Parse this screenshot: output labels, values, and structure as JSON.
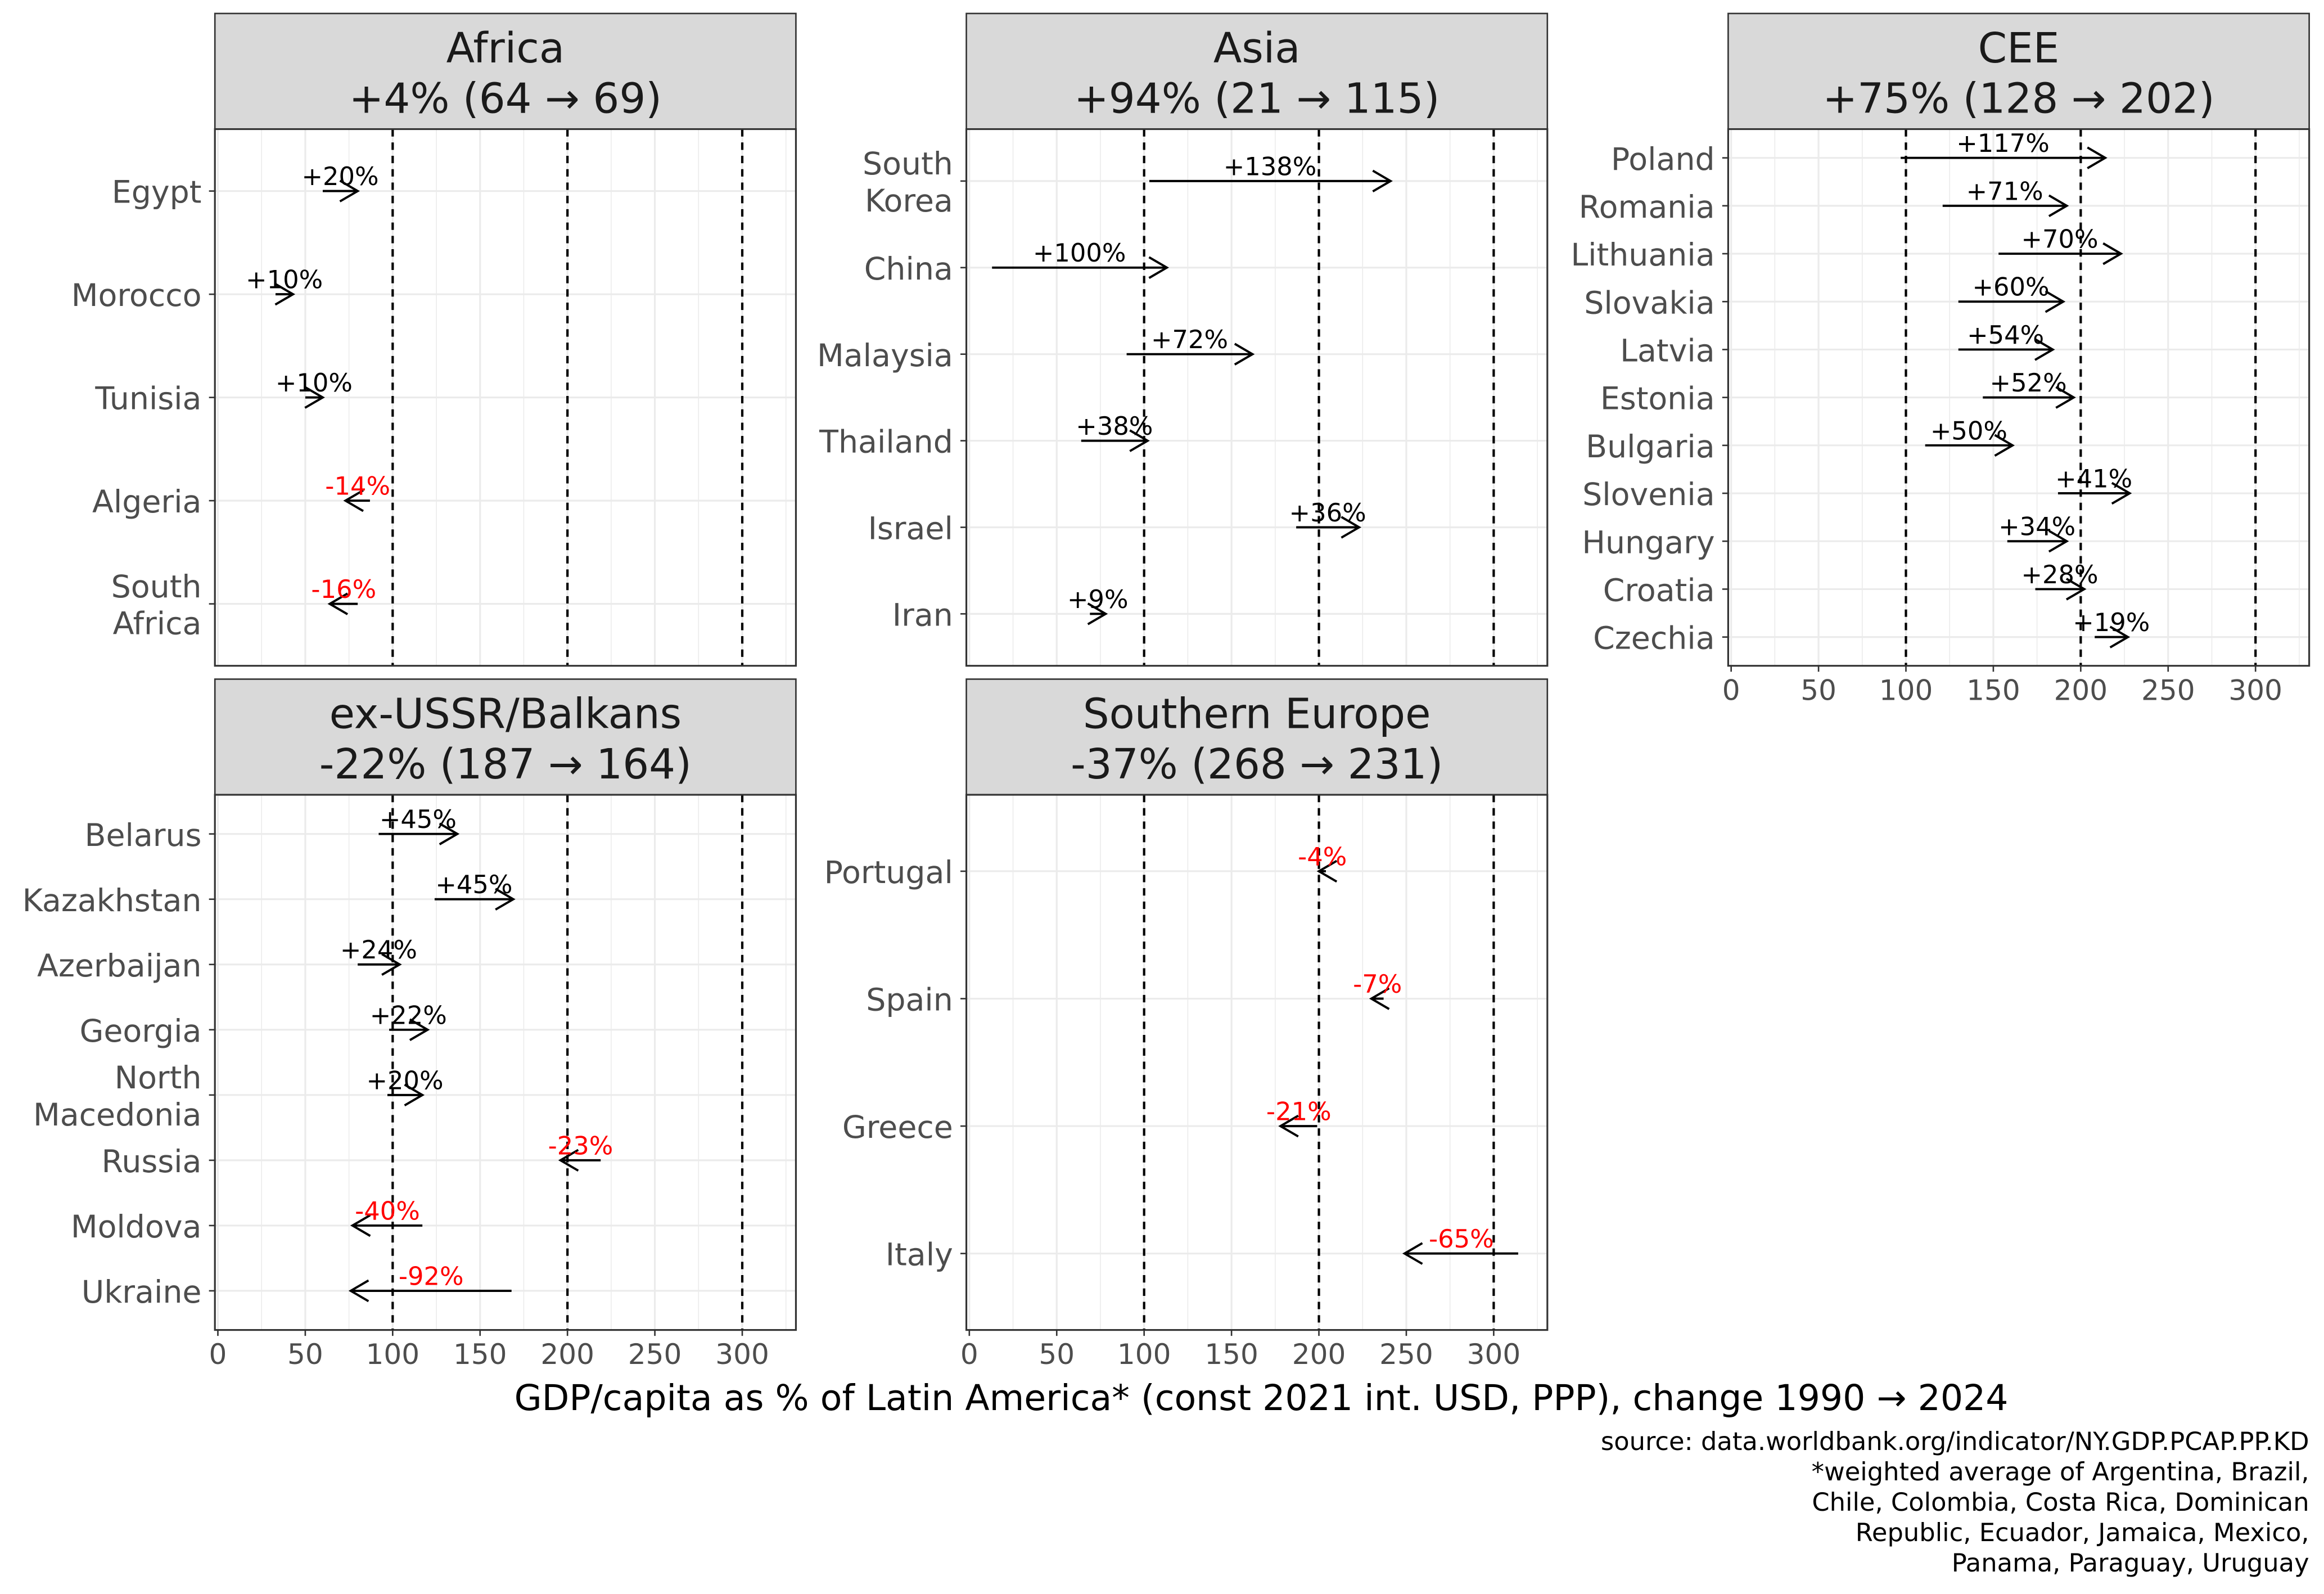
{
  "chart_data": {
    "type": "arrow-facet",
    "xlabel": "GDP/capita as % of Latin America* (const 2021 int. USD, PPP), change 1990 → 2024",
    "caption": [
      "source: data.worldbank.org/indicator/NY.GDP.PCAP.PP.KD",
      "*weighted average of Argentina, Brazil,",
      "Chile, Colombia, Costa Rica, Dominican",
      "Republic, Ecuador, Jamaica, Mexico,",
      "Panama, Paraguay, Uruguay"
    ],
    "xlim": [
      0,
      329
    ],
    "x_ticks": [
      "0",
      "50",
      "100",
      "150",
      "200",
      "250",
      "300"
    ],
    "reference_lines": [
      100,
      200,
      300
    ],
    "colors": {
      "gain": "#000000",
      "loss": "#ff0000",
      "strip": "#d9d9d9",
      "grid": "#ebebeb"
    },
    "panels": [
      {
        "title": "Africa",
        "summary": "+4% (64 → 69)",
        "show_x_ticks": false,
        "countries": [
          {
            "name": [
              "Egypt"
            ],
            "start": 60,
            "end": 80,
            "label": "+20%"
          },
          {
            "name": [
              "Morocco"
            ],
            "start": 33,
            "end": 43,
            "label": "+10%"
          },
          {
            "name": [
              "Tunisia"
            ],
            "start": 50,
            "end": 60,
            "label": "+10%"
          },
          {
            "name": [
              "Algeria"
            ],
            "start": 87,
            "end": 73,
            "label": "-14%"
          },
          {
            "name": [
              "South",
              "Africa"
            ],
            "start": 80,
            "end": 64,
            "label": "-16%"
          }
        ]
      },
      {
        "title": "Asia",
        "summary": "+94% (21 → 115)",
        "show_x_ticks": false,
        "countries": [
          {
            "name": [
              "South",
              "Korea"
            ],
            "start": 103,
            "end": 241,
            "label": "+138%"
          },
          {
            "name": [
              "China"
            ],
            "start": 13,
            "end": 113,
            "label": "+100%"
          },
          {
            "name": [
              "Malaysia"
            ],
            "start": 90,
            "end": 162,
            "label": "+72%"
          },
          {
            "name": [
              "Thailand"
            ],
            "start": 64,
            "end": 102,
            "label": "+38%"
          },
          {
            "name": [
              "Israel"
            ],
            "start": 187,
            "end": 223,
            "label": "+36%"
          },
          {
            "name": [
              "Iran"
            ],
            "start": 69,
            "end": 78,
            "label": "+9%"
          }
        ]
      },
      {
        "title": "CEE",
        "summary": "+75% (128 → 202)",
        "show_x_ticks": true,
        "countries": [
          {
            "name": [
              "Poland"
            ],
            "start": 97,
            "end": 214,
            "label": "+117%"
          },
          {
            "name": [
              "Romania"
            ],
            "start": 121,
            "end": 192,
            "label": "+71%"
          },
          {
            "name": [
              "Lithuania"
            ],
            "start": 153,
            "end": 223,
            "label": "+70%"
          },
          {
            "name": [
              "Slovakia"
            ],
            "start": 130,
            "end": 190,
            "label": "+60%"
          },
          {
            "name": [
              "Latvia"
            ],
            "start": 130,
            "end": 184,
            "label": "+54%"
          },
          {
            "name": [
              "Estonia"
            ],
            "start": 144,
            "end": 196,
            "label": "+52%"
          },
          {
            "name": [
              "Bulgaria"
            ],
            "start": 111,
            "end": 161,
            "label": "+50%"
          },
          {
            "name": [
              "Slovenia"
            ],
            "start": 187,
            "end": 228,
            "label": "+41%"
          },
          {
            "name": [
              "Hungary"
            ],
            "start": 158,
            "end": 192,
            "label": "+34%"
          },
          {
            "name": [
              "Croatia"
            ],
            "start": 174,
            "end": 202,
            "label": "+28%"
          },
          {
            "name": [
              "Czechia"
            ],
            "start": 208,
            "end": 227,
            "label": "+19%"
          }
        ]
      },
      {
        "title": "ex-USSR/Balkans",
        "summary": "-22% (187 → 164)",
        "show_x_ticks": true,
        "countries": [
          {
            "name": [
              "Belarus"
            ],
            "start": 92,
            "end": 137,
            "label": "+45%"
          },
          {
            "name": [
              "Kazakhstan"
            ],
            "start": 124,
            "end": 169,
            "label": "+45%"
          },
          {
            "name": [
              "Azerbaijan"
            ],
            "start": 80,
            "end": 104,
            "label": "+24%"
          },
          {
            "name": [
              "Georgia"
            ],
            "start": 98,
            "end": 120,
            "label": "+22%"
          },
          {
            "name": [
              "North",
              "Macedonia"
            ],
            "start": 97,
            "end": 117,
            "label": "+20%"
          },
          {
            "name": [
              "Russia"
            ],
            "start": 219,
            "end": 196,
            "label": "-23%"
          },
          {
            "name": [
              "Moldova"
            ],
            "start": 117,
            "end": 77,
            "label": "-40%"
          },
          {
            "name": [
              "Ukraine"
            ],
            "start": 168,
            "end": 76,
            "label": "-92%"
          }
        ]
      },
      {
        "title": "Southern Europe",
        "summary": "-37% (268 → 231)",
        "show_x_ticks": true,
        "countries": [
          {
            "name": [
              "Portugal"
            ],
            "start": 204,
            "end": 200,
            "label": "-4%"
          },
          {
            "name": [
              "Spain"
            ],
            "start": 237,
            "end": 230,
            "label": "-7%"
          },
          {
            "name": [
              "Greece"
            ],
            "start": 199,
            "end": 178,
            "label": "-21%"
          },
          {
            "name": [
              "Italy"
            ],
            "start": 314,
            "end": 249,
            "label": "-65%"
          }
        ]
      }
    ]
  }
}
